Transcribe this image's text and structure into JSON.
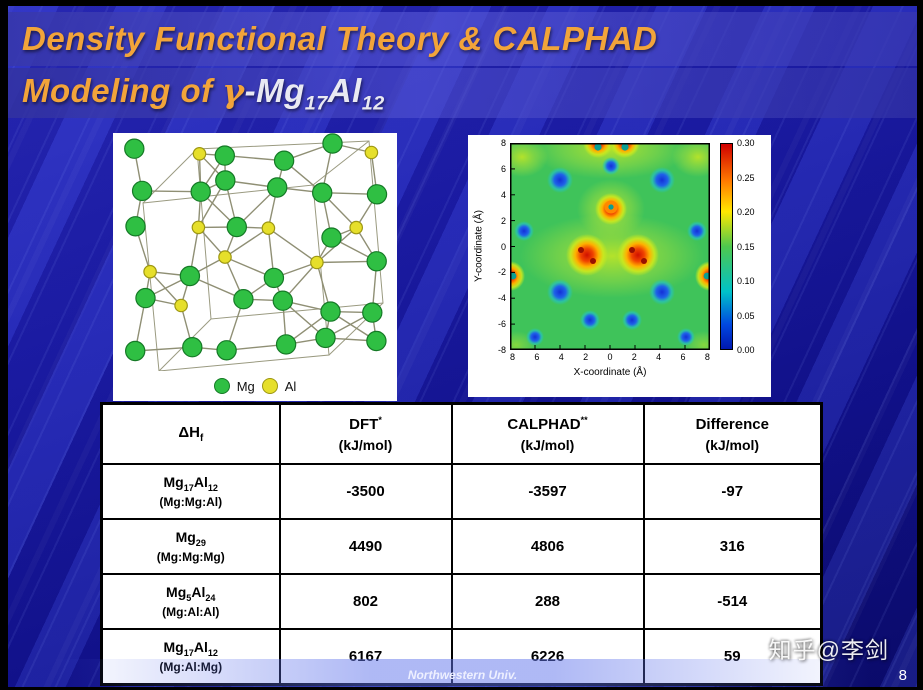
{
  "title": {
    "line1": "Density Functional Theory & CALPHAD",
    "line2_prefix": "Modeling of ",
    "gamma": "γ",
    "line2_formula": "-Mg_{17}Al_{12}"
  },
  "colors": {
    "accent_orange": "#f2a43a",
    "slide_blue": "#1c1caa",
    "mg_green": "#2fbf43",
    "al_yellow": "#e6df2b"
  },
  "crystal": {
    "legend": [
      {
        "label": "Mg",
        "color": "#2fbf43"
      },
      {
        "label": "Al",
        "color": "#e6df2b"
      }
    ]
  },
  "contour": {
    "xlabel": "X-coordinate (Å)",
    "ylabel": "Y-coordinate (Å)",
    "x_ticks": [
      "8",
      "6",
      "4",
      "2",
      "0",
      "2",
      "4",
      "6",
      "8"
    ],
    "y_ticks": [
      "8",
      "6",
      "4",
      "2",
      "0",
      "-2",
      "-4",
      "-6",
      "-8"
    ],
    "colorbar_ticks": [
      "0.30",
      "0.25",
      "0.20",
      "0.15",
      "0.10",
      "0.05",
      "0.00"
    ]
  },
  "table": {
    "headers": {
      "col1": "ΔH_{f}",
      "col2_line1": "DFT^{*}",
      "col2_line2": "(kJ/mol)",
      "col3_line1": "CALPHAD^{**}",
      "col3_line2": "(kJ/mol)",
      "col4_line1": "Difference",
      "col4_line2": "(kJ/mol)"
    },
    "rows": [
      {
        "compound": "Mg_{17}Al_{12}",
        "sublattice": "(Mg:Mg:Al)",
        "dft": "-3500",
        "calphad": "-3597",
        "difference": "-97"
      },
      {
        "compound": "Mg_{29}",
        "sublattice": "(Mg:Mg:Mg)",
        "dft": "4490",
        "calphad": "4806",
        "difference": "316"
      },
      {
        "compound": "Mg_{5}Al_{24}",
        "sublattice": "(Mg:Al:Al)",
        "dft": "802",
        "calphad": "288",
        "difference": "-514"
      },
      {
        "compound": "Mg_{17}Al_{12}",
        "sublattice": "(Mg:Al:Mg)",
        "dft": "6167",
        "calphad": "6226",
        "difference": "59"
      }
    ]
  },
  "footer": {
    "affiliation": "Northwestern Univ.",
    "page_number": "8",
    "watermark": "知乎@李剑"
  },
  "chart_data": [
    {
      "type": "heatmap",
      "xlabel": "X-coordinate (Å)",
      "ylabel": "Y-coordinate (Å)",
      "x_range": [
        -8,
        8
      ],
      "y_range": [
        -8,
        8
      ],
      "colorbar_range": [
        0.0,
        0.3
      ],
      "colorbar_ticks": [
        0.3,
        0.25,
        0.2,
        0.15,
        0.1,
        0.05,
        0.0
      ]
    },
    {
      "type": "table",
      "columns": [
        "ΔHf",
        "DFT (kJ/mol)",
        "CALPHAD (kJ/mol)",
        "Difference (kJ/mol)"
      ],
      "rows": [
        [
          "Mg17Al12 (Mg:Mg:Al)",
          -3500,
          -3597,
          -97
        ],
        [
          "Mg29 (Mg:Mg:Mg)",
          4490,
          4806,
          316
        ],
        [
          "Mg5Al24 (Mg:Al:Al)",
          802,
          288,
          -514
        ],
        [
          "Mg17Al12 (Mg:Al:Mg)",
          6167,
          6226,
          59
        ]
      ]
    }
  ]
}
